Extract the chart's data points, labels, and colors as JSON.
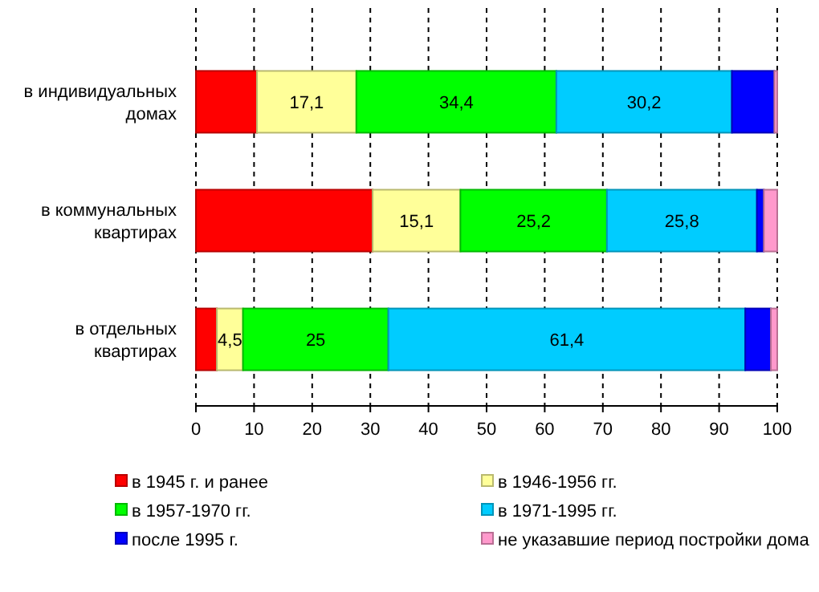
{
  "chart_data": {
    "type": "bar",
    "orientation": "horizontal",
    "stacked": true,
    "categories": [
      "в индивидуальных домах",
      "в коммунальных квартирах",
      "в отдельных квартирах"
    ],
    "series": [
      {
        "name": "в 1945 г. и ранее",
        "color": "#ff0000",
        "values": [
          10.5,
          30.4,
          3.6
        ],
        "value_labels": [
          null,
          null,
          null
        ]
      },
      {
        "name": "в 1946-1956 гг.",
        "color": "#ffff99",
        "values": [
          17.1,
          15.1,
          4.5
        ],
        "value_labels": [
          "17,1",
          "15,1",
          "4,5"
        ]
      },
      {
        "name": "в 1957-1970 гг.",
        "color": "#00ff00",
        "values": [
          34.4,
          25.2,
          25
        ],
        "value_labels": [
          "34,4",
          "25,2",
          "25"
        ]
      },
      {
        "name": "в 1971-1995 гг.",
        "color": "#00ccff",
        "values": [
          30.2,
          25.8,
          61.4
        ],
        "value_labels": [
          "30,2",
          "25,8",
          "61,4"
        ]
      },
      {
        "name": "после 1995 г.",
        "color": "#0000ff",
        "values": [
          7.3,
          1.2,
          4.4
        ],
        "value_labels": [
          null,
          null,
          null
        ]
      },
      {
        "name": "не указавшие период постройки дома",
        "color": "#ff99cc",
        "values": [
          0.5,
          2.3,
          1.1
        ],
        "value_labels": [
          null,
          null,
          null
        ]
      }
    ],
    "xlim": [
      0,
      100
    ],
    "xticks": [
      0,
      10,
      20,
      30,
      40,
      50,
      60,
      70,
      80,
      90,
      100
    ],
    "grid": "x",
    "legend": "bottom"
  }
}
